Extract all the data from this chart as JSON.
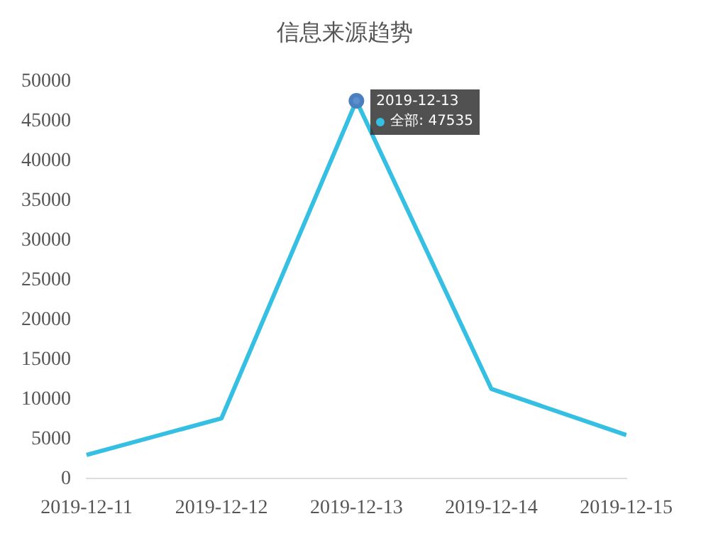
{
  "chart_data": {
    "type": "line",
    "title": "信息来源趋势",
    "categories": [
      "2019-12-11",
      "2019-12-12",
      "2019-12-13",
      "2019-12-14",
      "2019-12-15"
    ],
    "series": [
      {
        "color": "#35bfe3",
        "values": [
          3000,
          7600,
          47535,
          11300,
          5500
        ]
      }
    ],
    "ylim": [
      0,
      50000
    ],
    "yticks": [
      0,
      5000,
      10000,
      15000,
      20000,
      25000,
      30000,
      35000,
      40000,
      45000,
      50000
    ],
    "annotations": [
      {
        "text": "2019-12-13",
        "x": "2019-12-13",
        "y": 47535
      },
      {
        "text": "全部: 47535",
        "x": "2019-12-13",
        "y": 47535
      }
    ],
    "grid": false,
    "legend": false,
    "line_style": "solid"
  }
}
